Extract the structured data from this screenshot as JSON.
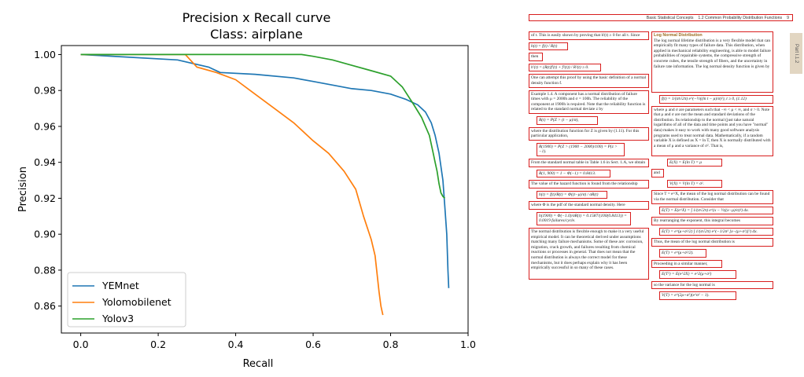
{
  "chart_data": {
    "type": "line",
    "title": "Precision x Recall curve",
    "subtitle": "Class: airplane",
    "xlabel": "Recall",
    "ylabel": "Precision",
    "xlim": [
      -0.05,
      1.0
    ],
    "ylim": [
      0.845,
      1.005
    ],
    "xticks": [
      "0.0",
      "0.2",
      "0.4",
      "0.6",
      "0.8",
      "1.0"
    ],
    "yticks": [
      "0.86",
      "0.88",
      "0.90",
      "0.92",
      "0.94",
      "0.96",
      "0.98",
      "1.00"
    ],
    "grid": false,
    "legend": "lower-left",
    "series": [
      {
        "name": "YEMnet",
        "color": "#1f77b4",
        "x": [
          0.0,
          0.25,
          0.33,
          0.36,
          0.45,
          0.55,
          0.6,
          0.65,
          0.7,
          0.75,
          0.8,
          0.84,
          0.87,
          0.89,
          0.905,
          0.915,
          0.925,
          0.935,
          0.94,
          0.945,
          0.948,
          0.95
        ],
        "y": [
          1.0,
          0.997,
          0.993,
          0.99,
          0.989,
          0.987,
          0.985,
          0.983,
          0.981,
          0.98,
          0.978,
          0.975,
          0.972,
          0.968,
          0.962,
          0.955,
          0.945,
          0.93,
          0.915,
          0.9,
          0.88,
          0.87
        ]
      },
      {
        "name": "Yolomobilenet",
        "color": "#ff7f0e",
        "x": [
          0.0,
          0.27,
          0.3,
          0.35,
          0.4,
          0.45,
          0.5,
          0.55,
          0.6,
          0.64,
          0.68,
          0.71,
          0.73,
          0.75,
          0.76,
          0.765,
          0.77,
          0.775,
          0.78
        ],
        "y": [
          1.0,
          1.0,
          0.993,
          0.99,
          0.986,
          0.978,
          0.97,
          0.962,
          0.952,
          0.945,
          0.935,
          0.925,
          0.91,
          0.897,
          0.888,
          0.878,
          0.868,
          0.86,
          0.855
        ]
      },
      {
        "name": "Yolov3",
        "color": "#2ca02c",
        "x": [
          0.0,
          0.57,
          0.6,
          0.65,
          0.7,
          0.75,
          0.8,
          0.83,
          0.86,
          0.88,
          0.9,
          0.91,
          0.915,
          0.92,
          0.925,
          0.93,
          0.935,
          0.94
        ],
        "y": [
          1.0,
          1.0,
          0.999,
          0.997,
          0.994,
          0.991,
          0.988,
          0.982,
          0.972,
          0.965,
          0.955,
          0.945,
          0.94,
          0.935,
          0.928,
          0.923,
          0.921,
          0.92
        ]
      }
    ]
  },
  "doc": {
    "header_section": "Basic Statistical Concepts",
    "header_sub": "1.2  Common Probability Distribution Functions",
    "header_page": "9",
    "side_tab": "Part I.1.2",
    "left_blocks": [
      "of t. This is easily shown by proving that h'(t) ≥ 0 for all t. Since",
      "h(t) = f(t) / R(t)",
      "then",
      "h'(t) = (R(t)f'(t) + f²(t)) / R²(t) ≥ 0.",
      "One can attempt this proof by using the basic definition of a normal density function f.",
      "Example 1.4. A component has a normal distribution of failure times with μ = 2000h and σ = 100h. The reliability of the component at 1900h is required. Note that the reliability function is related to the standard normal deviate z by",
      "R(t) = P(Z > (t − μ)/σ),",
      "where the distribution function for Z is given by (1.11). For this particular application,",
      "R(1900) = P(Z > (1900 − 2000)/100) = P(z > −1).",
      "From the standard normal table in Table 1.6 in Sect. 1.A, we obtain",
      "R(1, 900) = 1 − Φ(−1) = 0.8413.",
      "The value of the hazard function is found from the relationship",
      "h(t) = f(t)/R(t) = Φ((t−μ)/σ) / σR(t)",
      "where Φ is the pdf of the standard normal density. Here",
      "h(1900) = Φ(−1.0)/σR(t) = 0.1587/(100(0.8413)) = 0.0019 failures/cycle.",
      "The normal distribution is flexible enough to make it a very useful empirical model. It can be theoretical derived under assumptions matching many failure mechanisms. Some of these are: corrosion, migration, crack growth, and failures resulting from chemical reactions or processes in general. That does not mean that the normal distribution is always the correct model for these mechanisms, but it does perhaps explain why it has been empirically successful in so many of these cases."
    ],
    "right_heading": "Log Normal Distribution",
    "right_blocks": [
      "The log normal lifetime distribution is a very flexible model that can empirically fit many types of failure data. This distribution, when applied in mechanical reliability engineering, is able to model failure probabilities of repairable systems, the compressive strength of concrete cubes, the tensile strength of fibers, and the uncertainty in failure rate information. The log normal density function is given by",
      "f(t) = 1/(σt√2π) e^(−½((ln t − μ)/σ)²),   t ≥ 0,   (1.12)",
      "where μ and σ are parameters such that −∞ < μ < ∞, and σ > 0. Note that μ and σ are not the mean and standard deviations of the distribution. Its relationship to the normal (just take natural logarithms of all of the data and time points and you have \"normal\" data) makes it easy to work with many good software analysis programs used to treat normal data. Mathematically, if a random variable X is defined as X = ln T, then X is normally distributed with a mean of μ and a variance of σ². That is,",
      "E(X) = E(ln T) = μ",
      "and",
      "V(X) = V(ln T) = σ².",
      "Since T = e^X, the mean of the log normal distribution can be found via the normal distribution. Consider that",
      "E(T) = E(e^X) = ∫ 1/(σ√2π) e^(x − ½((x−μ)/σ)²) dx.",
      "By rearranging the exponent, this integral becomes",
      "E(T) = e^(μ+σ²/2) ∫ 1/(σ√2π) e^(−1/2σ² [x−(μ+σ²)]²) dx.",
      "Thus, the mean of the log normal distribution is",
      "E(T) = e^(μ+σ²/2).",
      "Proceeding in a similar manner,",
      "E(T²) = E(e^2X) = e^2(μ+σ²)",
      "so the variance for the log normal is",
      "V(T) = e^(2μ+σ²)(e^σ² − 1)."
    ]
  }
}
